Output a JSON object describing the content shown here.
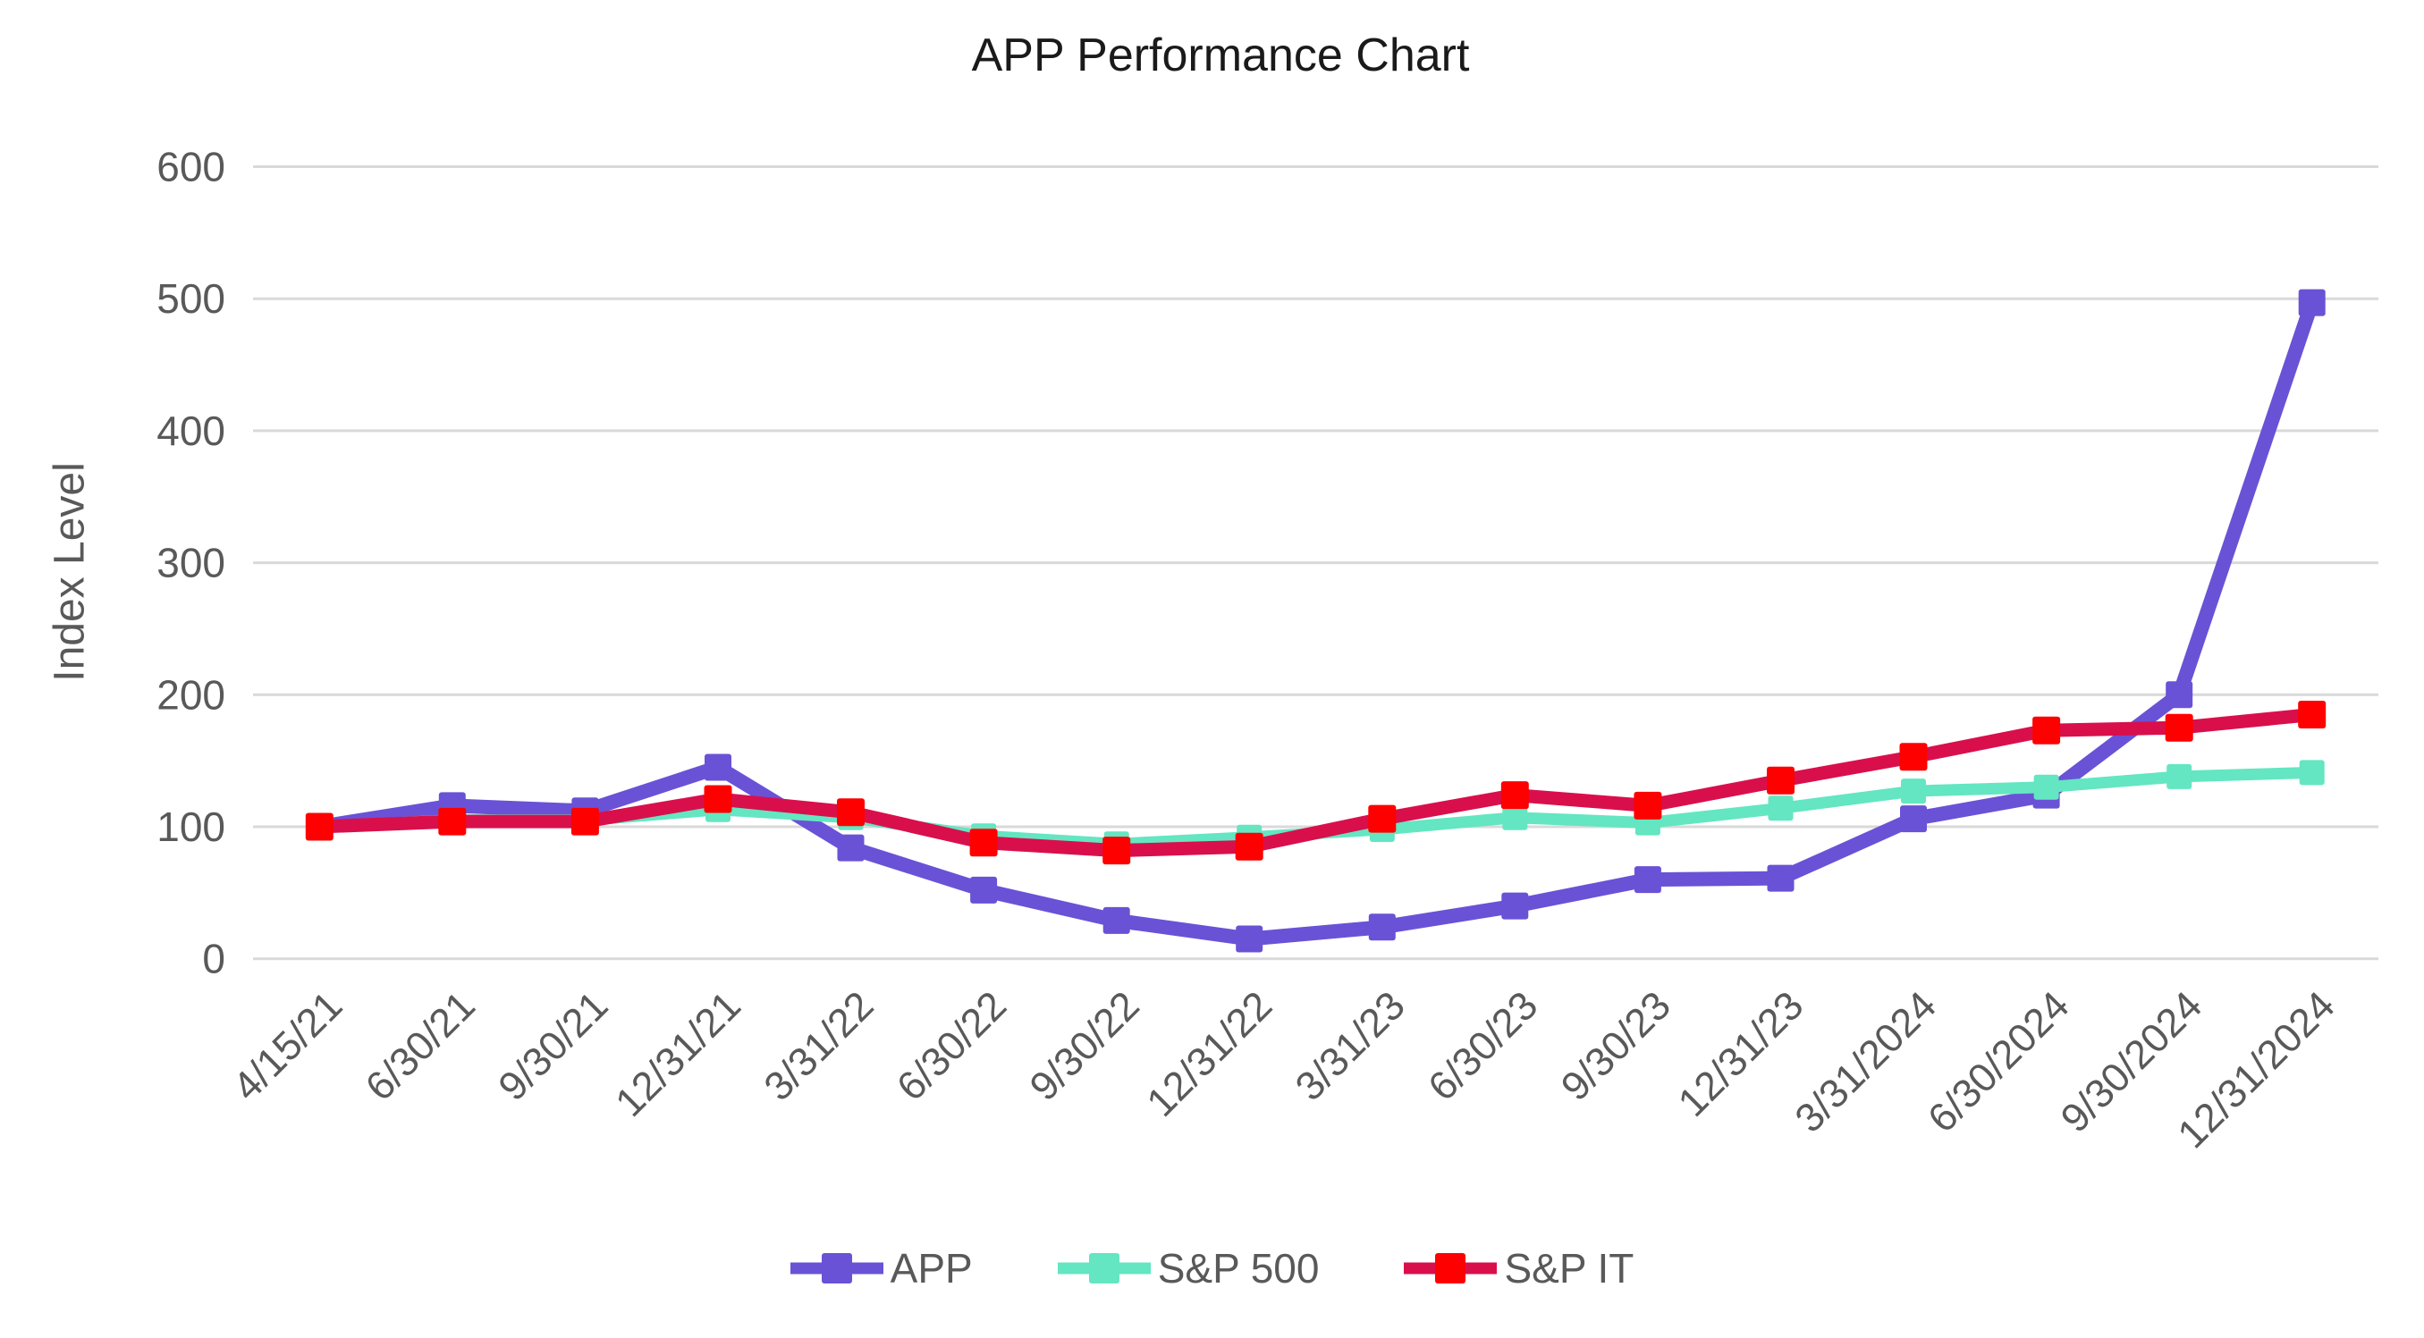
{
  "chart_data": {
    "type": "line",
    "title": "APP Performance Chart",
    "ylabel": "Index Level",
    "xlabel": "",
    "ylim": [
      0,
      600
    ],
    "yticks": [
      0,
      100,
      200,
      300,
      400,
      500,
      600
    ],
    "grid": "horizontal",
    "legend_position": "bottom",
    "colors": {
      "gridline": "#D9D9D9",
      "axis_text": "#595959",
      "title_text": "#1a1a1a"
    },
    "categories": [
      "4/15/21",
      "6/30/21",
      "9/30/21",
      "12/31/21",
      "3/31/22",
      "6/30/22",
      "9/30/22",
      "12/31/22",
      "3/31/23",
      "6/30/23",
      "9/30/23",
      "12/31/23",
      "3/31/2024",
      "6/30/2024",
      "9/30/2024",
      "12/31/2024"
    ],
    "series": [
      {
        "name": "APP",
        "color": "#6A52D6",
        "marker_color": "#6A52D6",
        "values": [
          100,
          116,
          112,
          145,
          84,
          52,
          29,
          15,
          24,
          40,
          60,
          61,
          106,
          124,
          200,
          497
        ]
      },
      {
        "name": "S&P 500",
        "color": "#63E6C1",
        "marker_color": "#63E6C1",
        "values": [
          100,
          105,
          105,
          113,
          107,
          93,
          87,
          92,
          98,
          107,
          103,
          114,
          127,
          130,
          138,
          141
        ]
      },
      {
        "name": "S&P IT",
        "color": "#D90F4C",
        "marker_color": "#FF0000",
        "values": [
          100,
          104,
          104,
          121,
          111,
          88,
          82,
          85,
          106,
          124,
          116,
          135,
          153,
          173,
          175,
          185
        ]
      }
    ]
  }
}
